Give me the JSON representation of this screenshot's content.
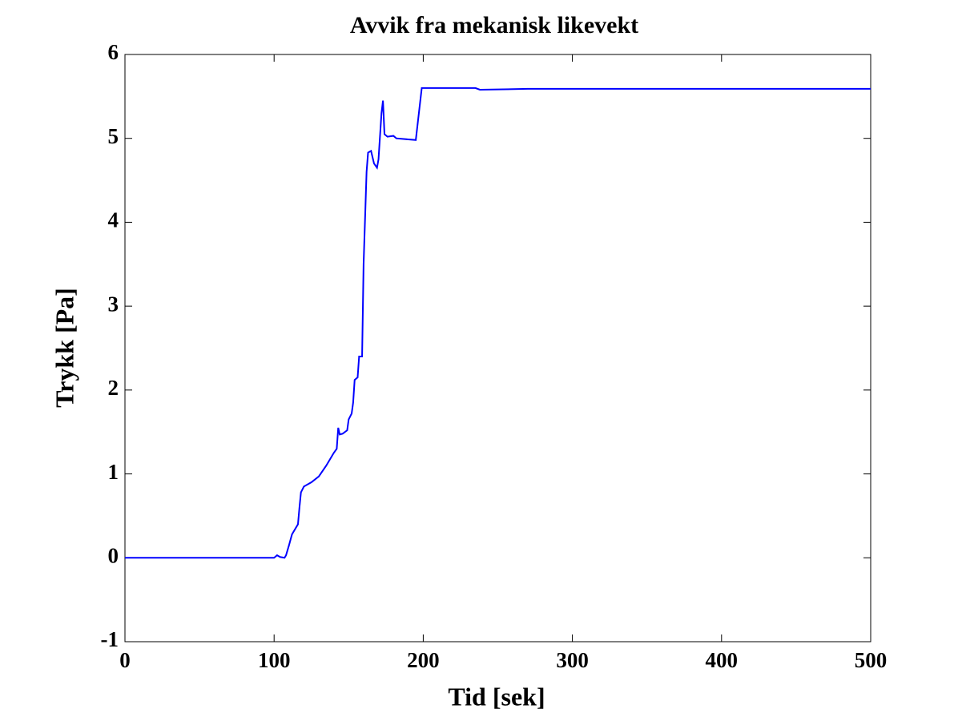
{
  "chart_data": {
    "type": "line",
    "title": "Avvik fra mekanisk likevekt",
    "x_label": "Tid [sek]",
    "y_label": "Trykk [Pa]",
    "x": [
      0,
      100,
      102,
      104,
      107,
      108,
      110,
      112,
      116,
      117,
      118,
      120,
      125,
      130,
      135,
      140,
      142,
      143,
      144,
      146,
      149,
      150,
      152,
      153,
      154,
      156,
      157,
      159,
      160,
      162,
      163,
      165,
      167,
      169,
      170,
      172,
      173,
      174,
      176,
      180,
      182,
      195,
      199,
      235,
      238,
      270,
      500
    ],
    "series": [
      {
        "name": "Trykk",
        "color": "#0000ff",
        "values": [
          0,
          0,
          0.03,
          0.01,
          0.0,
          0.03,
          0.15,
          0.28,
          0.4,
          0.6,
          0.78,
          0.85,
          0.9,
          0.97,
          1.1,
          1.25,
          1.3,
          1.55,
          1.47,
          1.48,
          1.52,
          1.65,
          1.72,
          1.85,
          2.12,
          2.15,
          2.4,
          2.4,
          3.5,
          4.6,
          4.83,
          4.85,
          4.7,
          4.65,
          4.75,
          5.3,
          5.45,
          5.05,
          5.02,
          5.03,
          5.0,
          4.98,
          5.6,
          5.6,
          5.58,
          5.59,
          5.59
        ]
      }
    ],
    "xlim": [
      0,
      500
    ],
    "ylim": [
      -1,
      6
    ],
    "xticks": [
      0,
      100,
      200,
      300,
      400,
      500
    ],
    "yticks": [
      -1,
      0,
      1,
      2,
      3,
      4,
      5,
      6
    ],
    "grid": false
  }
}
